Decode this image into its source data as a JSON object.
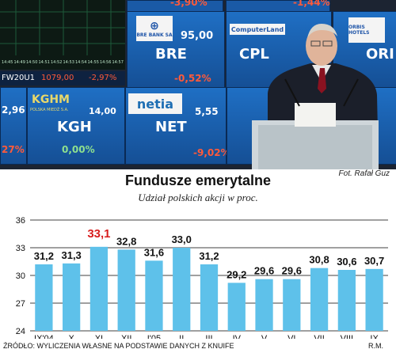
{
  "photo": {
    "credit": "Fot. Rafał Guz",
    "board": {
      "top_row": [
        "-3,90%",
        "-1,44%"
      ],
      "tickers": [
        "BRE",
        "CPL",
        "ORI",
        "KGH",
        "NET"
      ],
      "prices": [
        "95,00",
        "14,00",
        "5,55"
      ],
      "changes": [
        "-0,52%",
        "0,00%",
        "-9,02%",
        "-2,97%"
      ],
      "left_values": [
        "FW20U1",
        "1079,00",
        "2,96",
        "27%"
      ],
      "logos": [
        "BRE BANK SA",
        "ComputerLand",
        "ORBIS HOTELS",
        "KGHM",
        "POLSKA MIEDŹ S.A.",
        "netia"
      ],
      "times": [
        "14:45",
        "14:49",
        "14:50",
        "14:51",
        "14:52",
        "14:53",
        "14:54",
        "14:55",
        "14:56",
        "14:57"
      ]
    }
  },
  "chart_data": {
    "type": "bar",
    "title": "Fundusze emerytalne",
    "subtitle": "Udział polskich akcji w proc.",
    "categories": [
      "IX'04",
      "X",
      "XI",
      "XII",
      "I'05",
      "II",
      "III",
      "IV",
      "V",
      "VI",
      "VII",
      "VIII",
      "IX"
    ],
    "values": [
      31.2,
      31.3,
      33.1,
      32.8,
      31.6,
      33.0,
      31.2,
      29.2,
      29.6,
      29.6,
      30.8,
      30.6,
      30.7
    ],
    "value_labels": [
      "31,2",
      "31,3",
      "33,1",
      "32,8",
      "31,6",
      "33,0",
      "31,2",
      "29,2",
      "29,6",
      "29,6",
      "30,8",
      "30,6",
      "30,7"
    ],
    "highlight_index": 2,
    "yticks": [
      24,
      27,
      30,
      33,
      36
    ],
    "ylim": [
      24,
      36
    ],
    "grid": true,
    "colors": {
      "bar": "#5ec1ea",
      "label": "#111111",
      "highlight_label": "#d81e1e",
      "grid": "#000000"
    }
  },
  "footer": {
    "source": "ŹRÓDŁO: WYLICZENIA WŁASNE NA PODSTAWIE DANYCH Z KNUIFE",
    "author": "R.M."
  }
}
